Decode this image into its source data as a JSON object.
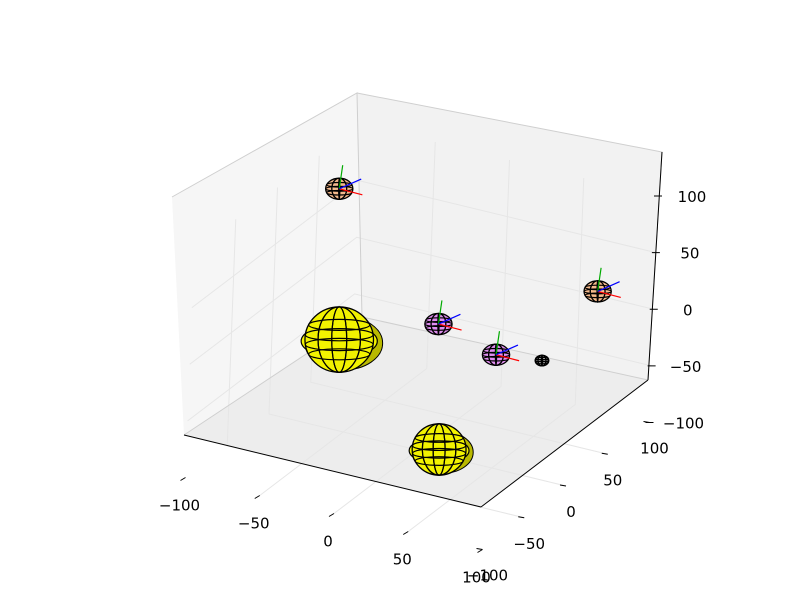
{
  "colors": {
    "background": "#ffffff",
    "pane_floor": "#ededed",
    "pane_back": "#f2f2f2",
    "pane_side": "#f6f6f6",
    "yellow": "#f2f200",
    "yellow_shade": "#b9b900",
    "peach": "#f4b98c",
    "peach_shade": "#c98d62",
    "violet": "#e08ef0",
    "violet_shade": "#b067c0",
    "axis_x": "#ff0000",
    "axis_y": "#00aa00",
    "axis_z": "#0000ff"
  },
  "chart_data": {
    "type": "scatter",
    "projection": "3d",
    "title": "",
    "xlabel": "",
    "ylabel": "",
    "zlabel": "",
    "xlim": [
      -100,
      100
    ],
    "ylim": [
      -100,
      100
    ],
    "zlim": [
      -100,
      100
    ],
    "grid": true,
    "legend": "none",
    "x_ticks": [
      "−100",
      "−50",
      "0",
      "50",
      "100"
    ],
    "y_ticks": [
      "−100",
      "−50",
      "0",
      "50",
      "100"
    ],
    "z_ticks": [
      "−100",
      "−50",
      "0",
      "50",
      "100"
    ],
    "bodies": [
      {
        "name": "yellow-ellipsoid-large",
        "color": "yellow",
        "x": -55,
        "y": 0,
        "z": -20,
        "radius": 28,
        "frame_axes": false
      },
      {
        "name": "yellow-ellipsoid-front",
        "color": "yellow",
        "x": 55,
        "y": -75,
        "z": -40,
        "radius": 22,
        "frame_axes": false
      },
      {
        "name": "peach-sphere-upper-left",
        "color": "peach",
        "x": -75,
        "y": 30,
        "z": 90,
        "radius": 10,
        "frame_axes": true
      },
      {
        "name": "peach-sphere-right",
        "color": "peach",
        "x": 100,
        "y": 30,
        "z": 55,
        "radius": 10,
        "frame_axes": true
      },
      {
        "name": "violet-sphere-left",
        "color": "violet",
        "x": 0,
        "y": 20,
        "z": 0,
        "radius": 10,
        "frame_axes": true
      },
      {
        "name": "violet-sphere-right",
        "color": "violet",
        "x": 50,
        "y": 0,
        "z": 0,
        "radius": 10,
        "frame_axes": true
      },
      {
        "name": "small-sphere",
        "color": "none",
        "x": 70,
        "y": 20,
        "z": -10,
        "radius": 5,
        "frame_axes": false
      }
    ]
  }
}
